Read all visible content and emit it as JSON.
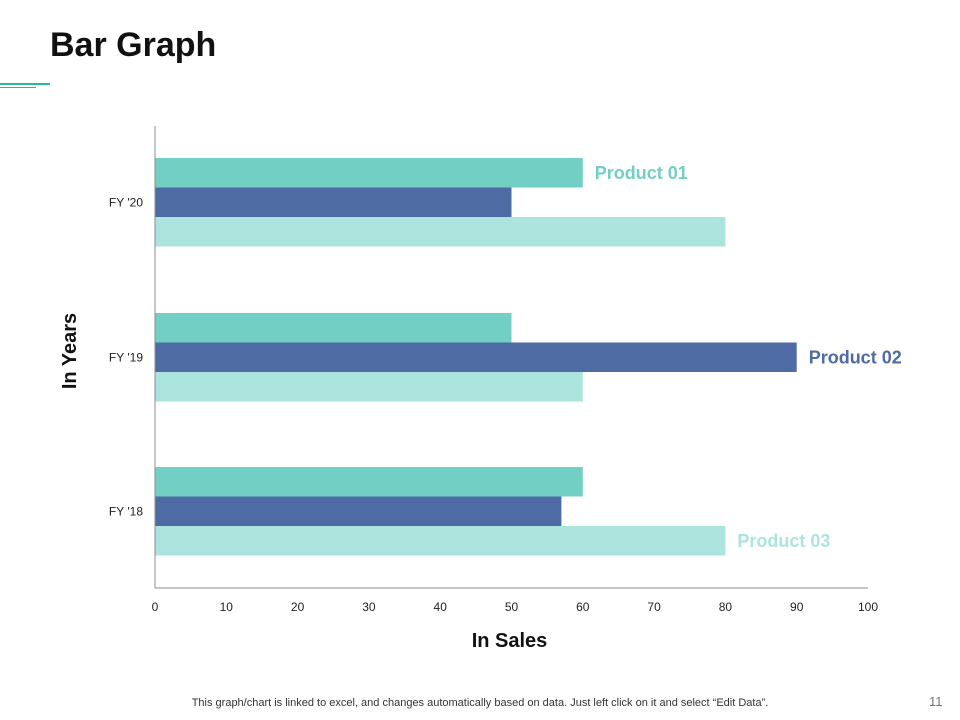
{
  "slide": {
    "title": "Bar Graph",
    "footer": "This graph/chart is linked to excel, and changes automatically based on data. Just left click on it and select “Edit Data”.",
    "page_number": "11",
    "accent_color": "#26b5b3"
  },
  "chart_data": {
    "type": "bar",
    "orientation": "horizontal",
    "categories": [
      "FY '20",
      "FY '19",
      "FY '18"
    ],
    "series": [
      {
        "name": "Product 01",
        "color": "#71d0c3",
        "values": [
          60,
          50,
          60
        ]
      },
      {
        "name": "Product 02",
        "color": "#4e6ba3",
        "values": [
          50,
          90,
          57
        ]
      },
      {
        "name": "Product 03",
        "color": "#abe4dd",
        "values": [
          80,
          60,
          80
        ]
      }
    ],
    "x_ticks": [
      "0",
      "10",
      "20",
      "30",
      "40",
      "50",
      "60",
      "70",
      "80",
      "90",
      "100"
    ],
    "xlim": [
      0,
      100
    ],
    "xlabel": "In Sales",
    "ylabel": "In Years",
    "grid": false,
    "legend": "inline labels at bar ends"
  }
}
